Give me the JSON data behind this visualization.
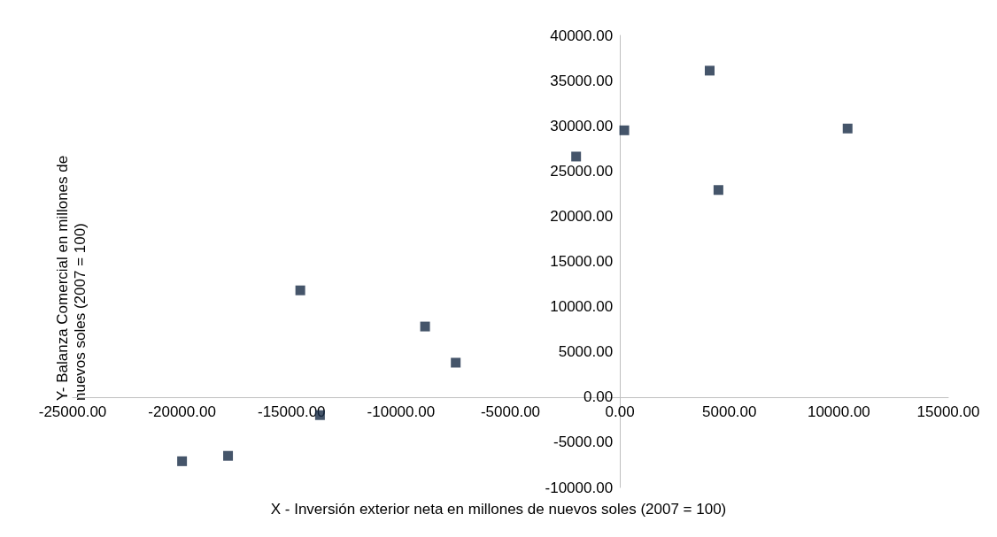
{
  "chart_data": {
    "type": "scatter",
    "xlabel": "X - Inversión exterior neta en millones de nuevos soles (2007 = 100)",
    "ylabel": "Y- Balanza Comercial en millones de nuevos soles (2007 = 100)",
    "x": [
      -20000,
      -17900,
      -13700,
      -14600,
      -8900,
      -7500,
      -2000,
      200,
      4100,
      4500,
      10400
    ],
    "series": [
      {
        "color": "#172a45",
        "values": [
          -7100,
          -6500,
          -2000,
          11800,
          7800,
          3800,
          26600,
          29500,
          36100,
          22900,
          29700
        ]
      }
    ],
    "marker": "square",
    "grid": false,
    "xlim": [
      -25000,
      15000
    ],
    "ylim": [
      -10000,
      40000
    ],
    "xticks": [
      {
        "value": -25000,
        "label": "-25000.00"
      },
      {
        "value": -20000,
        "label": "-20000.00"
      },
      {
        "value": -15000,
        "label": "-15000.00"
      },
      {
        "value": -10000,
        "label": "-10000.00"
      },
      {
        "value": -5000,
        "label": "-5000.00"
      },
      {
        "value": 0,
        "label": "0.00"
      },
      {
        "value": 5000,
        "label": "5000.00"
      },
      {
        "value": 10000,
        "label": "10000.00"
      },
      {
        "value": 15000,
        "label": "15000.00"
      }
    ],
    "yticks": [
      {
        "value": -10000,
        "label": "-10000.00"
      },
      {
        "value": -5000,
        "label": "-5000.00"
      },
      {
        "value": 0,
        "label": "0.00"
      },
      {
        "value": 5000,
        "label": "5000.00"
      },
      {
        "value": 10000,
        "label": "10000.00"
      },
      {
        "value": 15000,
        "label": "15000.00"
      },
      {
        "value": 20000,
        "label": "20000.00"
      },
      {
        "value": 25000,
        "label": "25000.00"
      },
      {
        "value": 30000,
        "label": "30000.00"
      },
      {
        "value": 35000,
        "label": "35000.00"
      },
      {
        "value": 40000,
        "label": "40000.00"
      }
    ]
  }
}
